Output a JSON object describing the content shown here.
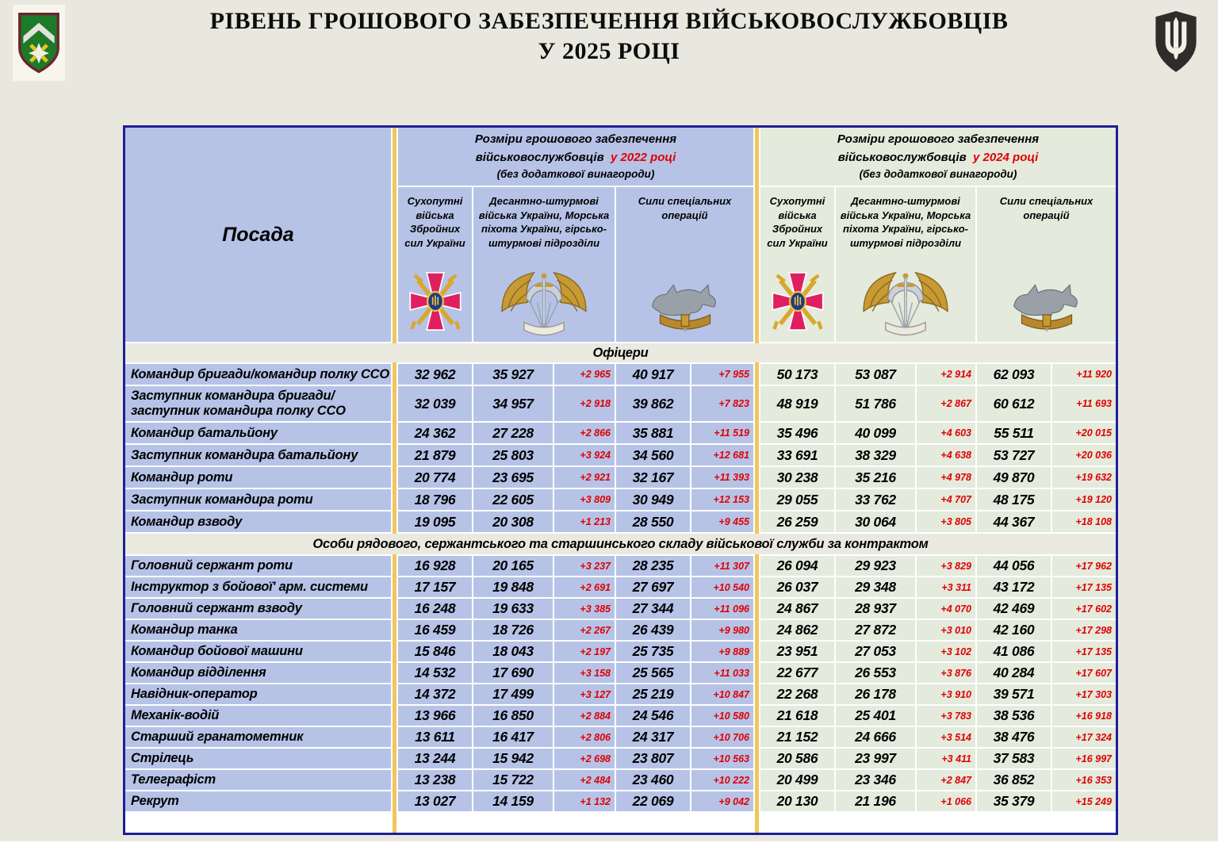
{
  "page": {
    "title_line1": "РІВЕНЬ ГРОШОВОГО ЗАБЕЗПЕЧЕННЯ ВІЙСЬКОВОСЛУЖБОВЦІВ",
    "title_line2": "У 2025 РОЦІ"
  },
  "colors": {
    "accent_red": "#e00000",
    "cell_blue_2022": "#b6c3e7",
    "cell_green_2024": "#e4eadc",
    "gold_divider": "#efc75a",
    "section_band": "#eae9e0",
    "table_border": "#1f1f96",
    "page_background": "#e9e8df"
  },
  "icons": {
    "header_left": "brigade-shield-emblem",
    "header_right": "mod-trident-emblem",
    "branch_1": "ground-forces-cross-emblem",
    "branch_2": "air-assault-wings-emblem",
    "branch_3": "sso-wolf-emblem"
  },
  "table": {
    "posada_header": "Посада",
    "groups": [
      {
        "line1": "Розміри грошового забезпечення",
        "line2_black": "військовослужбовців",
        "line2_red": "у 2022 році",
        "line3": "(без додаткової винагороди)"
      },
      {
        "line1": "Розміри грошового забезпечення",
        "line2_black": "військовослужбовців",
        "line2_red": "у 2024 році",
        "line3": "(без додаткової винагороди)"
      }
    ],
    "branches": [
      "Сухопутні війська Збройних сил України",
      "Десантно-штурмові війська України, Морська піхота України, гірсько-штурмові підрозділи",
      "Сили спеціальних операцій"
    ],
    "sections": [
      {
        "title": "Офіцери",
        "rows": [
          {
            "position": "Командир бригади/командир полку ССО",
            "y2022": [
              "32 962",
              "35 927",
              "+2 965",
              "40 917",
              "+7 955"
            ],
            "y2024": [
              "50 173",
              "53 087",
              "+2 914",
              "62 093",
              "+11 920"
            ]
          },
          {
            "position": "Заступник командира бригади/\nзаступник командира полку ССО",
            "y2022": [
              "32 039",
              "34 957",
              "+2 918",
              "39 862",
              "+7 823"
            ],
            "y2024": [
              "48 919",
              "51 786",
              "+2 867",
              "60 612",
              "+11 693"
            ]
          },
          {
            "position": "Командир батальйону",
            "y2022": [
              "24 362",
              "27 228",
              "+2 866",
              "35 881",
              "+11 519"
            ],
            "y2024": [
              "35 496",
              "40 099",
              "+4 603",
              "55 511",
              "+20 015"
            ]
          },
          {
            "position": "Заступник командира батальйону",
            "y2022": [
              "21 879",
              "25 803",
              "+3 924",
              "34 560",
              "+12 681"
            ],
            "y2024": [
              "33 691",
              "38 329",
              "+4 638",
              "53 727",
              "+20 036"
            ]
          },
          {
            "position": "Командир роти",
            "y2022": [
              "20 774",
              "23 695",
              "+2 921",
              "32 167",
              "+11 393"
            ],
            "y2024": [
              "30 238",
              "35 216",
              "+4 978",
              "49 870",
              "+19 632"
            ]
          },
          {
            "position": "Заступник командира роти",
            "y2022": [
              "18 796",
              "22 605",
              "+3 809",
              "30 949",
              "+12 153"
            ],
            "y2024": [
              "29 055",
              "33 762",
              "+4 707",
              "48 175",
              "+19 120"
            ]
          },
          {
            "position": "Командир взводу",
            "y2022": [
              "19 095",
              "20 308",
              "+1 213",
              "28 550",
              "+9 455"
            ],
            "y2024": [
              "26 259",
              "30 064",
              "+3 805",
              "44 367",
              "+18 108"
            ]
          }
        ]
      },
      {
        "title": "Особи рядового, сержантського та старшинського складу військової служби за контрактом",
        "rows": [
          {
            "position": "Головний сержант роти",
            "y2022": [
              "16 928",
              "20 165",
              "+3 237",
              "28 235",
              "+11 307"
            ],
            "y2024": [
              "26 094",
              "29 923",
              "+3 829",
              "44 056",
              "+17 962"
            ]
          },
          {
            "position": "Інструктор з бойової' арм. системи",
            "y2022": [
              "17 157",
              "19 848",
              "+2 691",
              "27 697",
              "+10 540"
            ],
            "y2024": [
              "26 037",
              "29 348",
              "+3 311",
              "43 172",
              "+17 135"
            ]
          },
          {
            "position": "Головний сержант взводу",
            "y2022": [
              "16 248",
              "19 633",
              "+3 385",
              "27 344",
              "+11 096"
            ],
            "y2024": [
              "24 867",
              "28 937",
              "+4 070",
              "42 469",
              "+17 602"
            ]
          },
          {
            "position": "Командир танка",
            "y2022": [
              "16 459",
              "18 726",
              "+2 267",
              "26 439",
              "+9 980"
            ],
            "y2024": [
              "24 862",
              "27 872",
              "+3 010",
              "42 160",
              "+17 298"
            ]
          },
          {
            "position": "Командир бойової машини",
            "y2022": [
              "15 846",
              "18 043",
              "+2 197",
              "25 735",
              "+9 889"
            ],
            "y2024": [
              "23 951",
              "27 053",
              "+3 102",
              "41 086",
              "+17 135"
            ]
          },
          {
            "position": "Командир відділення",
            "y2022": [
              "14 532",
              "17 690",
              "+3 158",
              "25 565",
              "+11 033"
            ],
            "y2024": [
              "22 677",
              "26 553",
              "+3 876",
              "40 284",
              "+17 607"
            ]
          },
          {
            "position": "Навідник-оператор",
            "y2022": [
              "14 372",
              "17 499",
              "+3 127",
              "25 219",
              "+10 847"
            ],
            "y2024": [
              "22 268",
              "26 178",
              "+3 910",
              "39 571",
              "+17 303"
            ]
          },
          {
            "position": "Механік-водій",
            "y2022": [
              "13 966",
              "16 850",
              "+2 884",
              "24 546",
              "+10 580"
            ],
            "y2024": [
              "21 618",
              "25 401",
              "+3 783",
              "38 536",
              "+16 918"
            ]
          },
          {
            "position": "Старший гранатометник",
            "y2022": [
              "13 611",
              "16 417",
              "+2 806",
              "24 317",
              "+10 706"
            ],
            "y2024": [
              "21 152",
              "24 666",
              "+3 514",
              "38 476",
              "+17 324"
            ]
          },
          {
            "position": "Стрілець",
            "y2022": [
              "13 244",
              "15 942",
              "+2 698",
              "23 807",
              "+10 563"
            ],
            "y2024": [
              "20 586",
              "23 997",
              "+3 411",
              "37 583",
              "+16 997"
            ]
          },
          {
            "position": "Телеграфіст",
            "y2022": [
              "13 238",
              "15 722",
              "+2 484",
              "23 460",
              "+10 222"
            ],
            "y2024": [
              "20 499",
              "23 346",
              "+2 847",
              "36 852",
              "+16 353"
            ]
          },
          {
            "position": "Рекрут",
            "y2022": [
              "13 027",
              "14 159",
              "+1 132",
              "22 069",
              "+9 042"
            ],
            "y2024": [
              "20 130",
              "21 196",
              "+1 066",
              "35 379",
              "+15 249"
            ]
          }
        ]
      }
    ]
  },
  "chart_data": {
    "type": "table",
    "title": "РІВЕНЬ ГРОШОВОГО ЗАБЕЗПЕЧЕННЯ ВІЙСЬКОВОСЛУЖБОВЦІВ У 2025 РОЦІ",
    "column_groups": [
      "у 2022 році (без додаткової винагороди)",
      "у 2024 році (без додаткової винагороди)"
    ],
    "columns": [
      "Посада",
      "2022 Сухопутні війська ЗСУ",
      "2022 ДШВ/Морська піхота/гірсько-штурмові",
      "2022 ДШВ +",
      "2022 Сили спеціальних операцій",
      "2022 ССО +",
      "2024 Сухопутні війська ЗСУ",
      "2024 ДШВ/Морська піхота/гірсько-штурмові",
      "2024 ДШВ +",
      "2024 Сили спеціальних операцій",
      "2024 ССО +"
    ],
    "sections": [
      {
        "name": "Офіцери",
        "rows": [
          [
            "Командир бригади/командир полку ССО",
            32962,
            35927,
            2965,
            40917,
            7955,
            50173,
            53087,
            2914,
            62093,
            11920
          ],
          [
            "Заступник командира бригади/заступник командира полку ССО",
            32039,
            34957,
            2918,
            39862,
            7823,
            48919,
            51786,
            2867,
            60612,
            11693
          ],
          [
            "Командир батальйону",
            24362,
            27228,
            2866,
            35881,
            11519,
            35496,
            40099,
            4603,
            55511,
            20015
          ],
          [
            "Заступник командира батальйону",
            21879,
            25803,
            3924,
            34560,
            12681,
            33691,
            38329,
            4638,
            53727,
            20036
          ],
          [
            "Командир роти",
            20774,
            23695,
            2921,
            32167,
            11393,
            30238,
            35216,
            4978,
            49870,
            19632
          ],
          [
            "Заступник командира роти",
            18796,
            22605,
            3809,
            30949,
            12153,
            29055,
            33762,
            4707,
            48175,
            19120
          ],
          [
            "Командир взводу",
            19095,
            20308,
            1213,
            28550,
            9455,
            26259,
            30064,
            3805,
            44367,
            18108
          ]
        ]
      },
      {
        "name": "Особи рядового, сержантського та старшинського складу військової служби за контрактом",
        "rows": [
          [
            "Головний сержант роти",
            16928,
            20165,
            3237,
            28235,
            11307,
            26094,
            29923,
            3829,
            44056,
            17962
          ],
          [
            "Інструктор з бойової' арм. системи",
            17157,
            19848,
            2691,
            27697,
            10540,
            26037,
            29348,
            3311,
            43172,
            17135
          ],
          [
            "Головний сержант взводу",
            16248,
            19633,
            3385,
            27344,
            11096,
            24867,
            28937,
            4070,
            42469,
            17602
          ],
          [
            "Командир танка",
            16459,
            18726,
            2267,
            26439,
            9980,
            24862,
            27872,
            3010,
            42160,
            17298
          ],
          [
            "Командир бойової машини",
            15846,
            18043,
            2197,
            25735,
            9889,
            23951,
            27053,
            3102,
            41086,
            17135
          ],
          [
            "Командир відділення",
            14532,
            17690,
            3158,
            25565,
            11033,
            22677,
            26553,
            3876,
            40284,
            17607
          ],
          [
            "Навідник-оператор",
            14372,
            17499,
            3127,
            25219,
            10847,
            22268,
            26178,
            3910,
            39571,
            17303
          ],
          [
            "Механік-водій",
            13966,
            16850,
            2884,
            24546,
            10580,
            21618,
            25401,
            3783,
            38536,
            16918
          ],
          [
            "Старший гранатометник",
            13611,
            16417,
            2806,
            24317,
            10706,
            21152,
            24666,
            3514,
            38476,
            17324
          ],
          [
            "Стрілець",
            13244,
            15942,
            2698,
            23807,
            10563,
            20586,
            23997,
            3411,
            37583,
            16997
          ],
          [
            "Телеграфіст",
            13238,
            15722,
            2484,
            23460,
            10222,
            20499,
            23346,
            2847,
            36852,
            16353
          ],
          [
            "Рекрут",
            13027,
            14159,
            1132,
            22069,
            9042,
            20130,
            21196,
            1066,
            35379,
            15249
          ]
        ]
      }
    ]
  }
}
